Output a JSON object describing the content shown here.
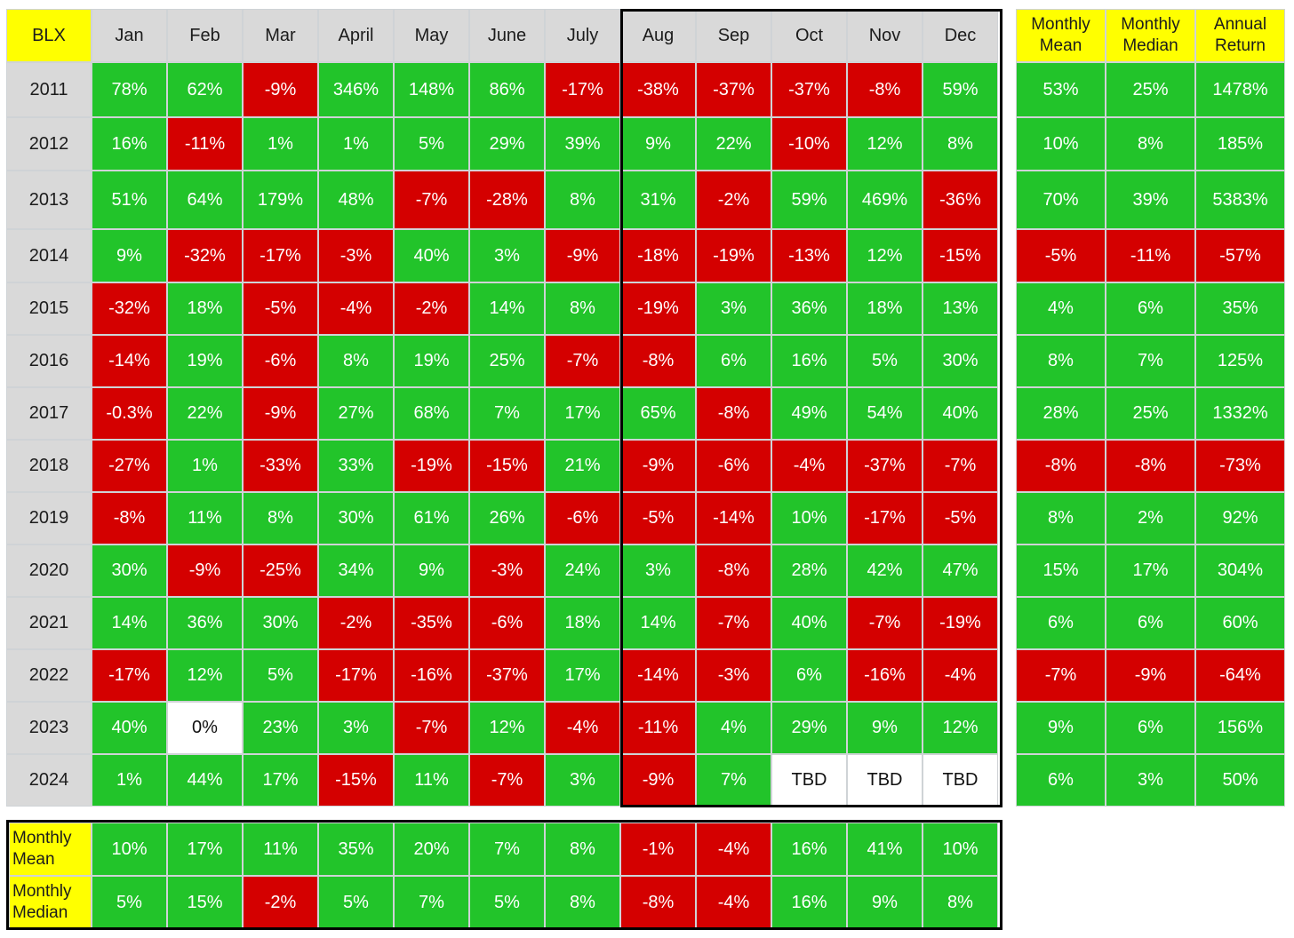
{
  "chart_data": {
    "type": "table",
    "title": "",
    "corner_label": "BLX",
    "months": [
      "Jan",
      "Feb",
      "Mar",
      "April",
      "May",
      "June",
      "July",
      "Aug",
      "Sep",
      "Oct",
      "Nov",
      "Dec"
    ],
    "years": [
      "2011",
      "2012",
      "2013",
      "2014",
      "2015",
      "2016",
      "2017",
      "2018",
      "2019",
      "2020",
      "2021",
      "2022",
      "2023",
      "2024"
    ],
    "rows": [
      [
        "78%",
        "62%",
        "-9%",
        "346%",
        "148%",
        "86%",
        "-17%",
        "-38%",
        "-37%",
        "-37%",
        "-8%",
        "59%"
      ],
      [
        "16%",
        "-11%",
        "1%",
        "1%",
        "5%",
        "29%",
        "39%",
        "9%",
        "22%",
        "-10%",
        "12%",
        "8%"
      ],
      [
        "51%",
        "64%",
        "179%",
        "48%",
        "-7%",
        "-28%",
        "8%",
        "31%",
        "-2%",
        "59%",
        "469%",
        "-36%"
      ],
      [
        "9%",
        "-32%",
        "-17%",
        "-3%",
        "40%",
        "3%",
        "-9%",
        "-18%",
        "-19%",
        "-13%",
        "12%",
        "-15%"
      ],
      [
        "-32%",
        "18%",
        "-5%",
        "-4%",
        "-2%",
        "14%",
        "8%",
        "-19%",
        "3%",
        "36%",
        "18%",
        "13%"
      ],
      [
        "-14%",
        "19%",
        "-6%",
        "8%",
        "19%",
        "25%",
        "-7%",
        "-8%",
        "6%",
        "16%",
        "5%",
        "30%"
      ],
      [
        "-0.3%",
        "22%",
        "-9%",
        "27%",
        "68%",
        "7%",
        "17%",
        "65%",
        "-8%",
        "49%",
        "54%",
        "40%"
      ],
      [
        "-27%",
        "1%",
        "-33%",
        "33%",
        "-19%",
        "-15%",
        "21%",
        "-9%",
        "-6%",
        "-4%",
        "-37%",
        "-7%"
      ],
      [
        "-8%",
        "11%",
        "8%",
        "30%",
        "61%",
        "26%",
        "-6%",
        "-5%",
        "-14%",
        "10%",
        "-17%",
        "-5%"
      ],
      [
        "30%",
        "-9%",
        "-25%",
        "34%",
        "9%",
        "-3%",
        "24%",
        "3%",
        "-8%",
        "28%",
        "42%",
        "47%"
      ],
      [
        "14%",
        "36%",
        "30%",
        "-2%",
        "-35%",
        "-6%",
        "18%",
        "14%",
        "-7%",
        "40%",
        "-7%",
        "-19%"
      ],
      [
        "-17%",
        "12%",
        "5%",
        "-17%",
        "-16%",
        "-37%",
        "17%",
        "-14%",
        "-3%",
        "6%",
        "-16%",
        "-4%"
      ],
      [
        "40%",
        "0%",
        "23%",
        "3%",
        "-7%",
        "12%",
        "-4%",
        "-11%",
        "4%",
        "29%",
        "9%",
        "12%"
      ],
      [
        "1%",
        "44%",
        "17%",
        "-15%",
        "11%",
        "-7%",
        "3%",
        "-9%",
        "7%",
        "TBD",
        "TBD",
        "TBD"
      ]
    ],
    "side_headers": [
      "Monthly\nMean",
      "Monthly\nMedian",
      "Annual\nReturn"
    ],
    "side_rows": [
      [
        "53%",
        "25%",
        "1478%"
      ],
      [
        "10%",
        "8%",
        "185%"
      ],
      [
        "70%",
        "39%",
        "5383%"
      ],
      [
        "-5%",
        "-11%",
        "-57%"
      ],
      [
        "4%",
        "6%",
        "35%"
      ],
      [
        "8%",
        "7%",
        "125%"
      ],
      [
        "28%",
        "25%",
        "1332%"
      ],
      [
        "-8%",
        "-8%",
        "-73%"
      ],
      [
        "8%",
        "2%",
        "92%"
      ],
      [
        "15%",
        "17%",
        "304%"
      ],
      [
        "6%",
        "6%",
        "60%"
      ],
      [
        "-7%",
        "-9%",
        "-64%"
      ],
      [
        "9%",
        "6%",
        "156%"
      ],
      [
        "6%",
        "3%",
        "50%"
      ]
    ],
    "bottom_rows": [
      {
        "label": "Monthly\nMean",
        "values": [
          "10%",
          "17%",
          "11%",
          "35%",
          "20%",
          "7%",
          "8%",
          "-1%",
          "-4%",
          "16%",
          "41%",
          "10%"
        ]
      },
      {
        "label": "Monthly\nMedian",
        "values": [
          "5%",
          "15%",
          "-2%",
          "5%",
          "7%",
          "5%",
          "8%",
          "-8%",
          "-4%",
          "16%",
          "9%",
          "8%"
        ]
      }
    ],
    "colors": {
      "positive": "#22c42a",
      "negative": "#d40000",
      "neutral": "#ffffff",
      "header": "#d9d9d9",
      "label": "#ffff00"
    }
  }
}
